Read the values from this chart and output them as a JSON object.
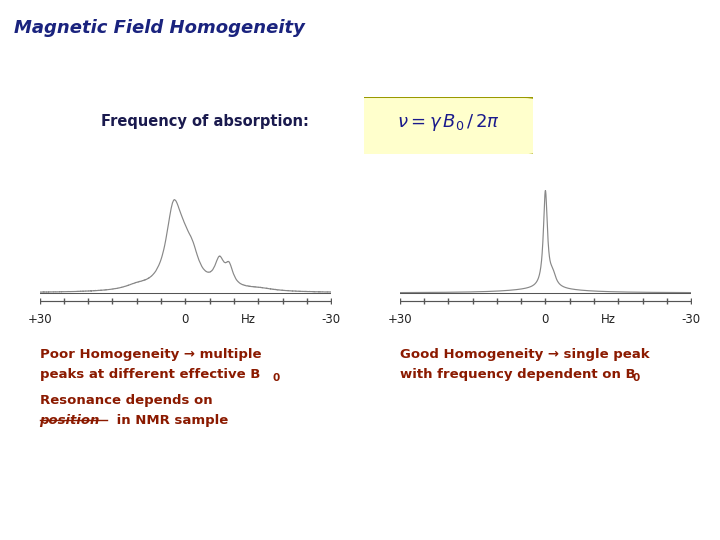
{
  "title": "Magnetic Field Homogeneity",
  "title_color": "#1a237e",
  "title_fontsize": 13,
  "freq_label": "Frequency of absorption:",
  "formula_box_color": "#ffffcc",
  "formula_box_edge": "#999900",
  "formula_text_color": "#1a1a8c",
  "poor_label_line1": "Poor Homogeneity → multiple",
  "poor_label_line2": "peaks at different effective B",
  "poor_label_sub": "0",
  "good_label_line1": "Good Homogeneity → single peak",
  "good_label_line2": "with frequency dependent on B",
  "good_label_sub": "0",
  "resonance_line1": "Resonance depends on",
  "resonance_line2_prefix": "position",
  "resonance_line2_suffix": " in NMR sample",
  "annotation_color": "#8b1a00",
  "spectrum_color": "#888888",
  "tick_label_color": "#222222"
}
